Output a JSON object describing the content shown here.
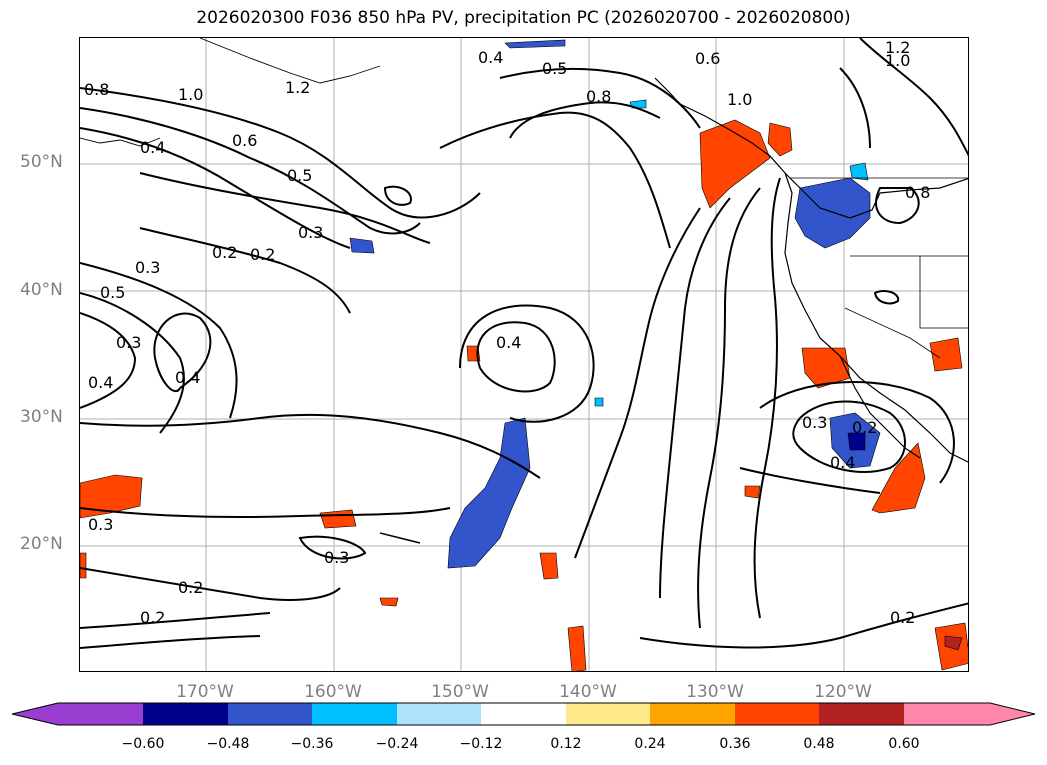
{
  "title": "2026020300 F036 850 hPa PV, precipitation PC (2026020700 - 2026020800)",
  "map": {
    "lat_labels": [
      "50°N",
      "40°N",
      "30°N",
      "20°N"
    ],
    "lon_labels": [
      "170°W",
      "160°W",
      "150°W",
      "140°W",
      "130°W",
      "120°W"
    ],
    "contour_labels": [
      "0.8",
      "1.0",
      "1.2",
      "0.4",
      "0.6",
      "0.5",
      "0.3",
      "0.2",
      "0.4",
      "0.5",
      "0.8",
      "1.0",
      "0.6",
      "1.2",
      "1.0",
      "0.8",
      "0.3",
      "0.5",
      "0.3",
      "0.4",
      "0.4",
      "0.3",
      "0.3",
      "0.2",
      "0.2",
      "0.3",
      "0.2",
      "0.4",
      "0.2",
      "0.2",
      "0.4"
    ]
  },
  "colorbar": {
    "ticks": [
      "−0.60",
      "−0.48",
      "−0.36",
      "−0.24",
      "−0.12",
      "0.12",
      "0.24",
      "0.36",
      "0.48",
      "0.60"
    ],
    "colors": [
      "#9a3dd1",
      "#00008b",
      "#3355cc",
      "#00bfff",
      "#aee2fb",
      "#ffffff",
      "#fde98a",
      "#ffa500",
      "#ff4500",
      "#b22222",
      "#ff88aa"
    ]
  }
}
